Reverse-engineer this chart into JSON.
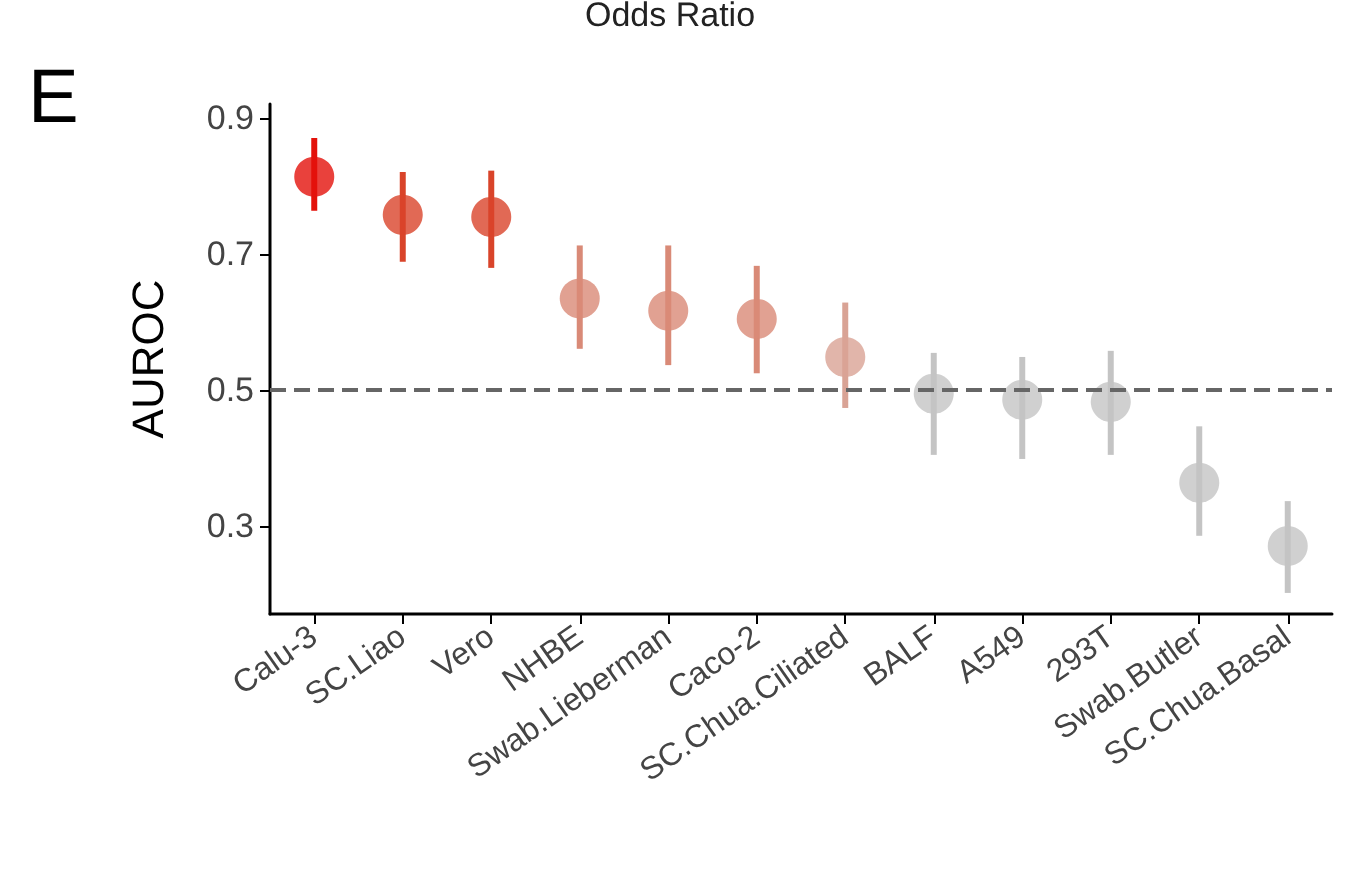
{
  "chart_data": {
    "type": "scatter",
    "title": "Odds Ratio",
    "ylabel": "AUROC",
    "annotations": [
      "E"
    ],
    "categories": [
      "Calu-3",
      "SC.Liao",
      "Vero",
      "NHBE",
      "Swab.Lieberman",
      "Caco-2",
      "SC.Chua.Ciliated",
      "BALF",
      "A549",
      "293T",
      "Swab.Butler",
      "SC.Chua.Basal"
    ],
    "values": [
      0.813,
      0.757,
      0.754,
      0.634,
      0.616,
      0.604,
      0.548,
      0.494,
      0.485,
      0.482,
      0.363,
      0.27
    ],
    "errors": [
      [
        0.763,
        0.87
      ],
      [
        0.688,
        0.82
      ],
      [
        0.679,
        0.822
      ],
      [
        0.56,
        0.712
      ],
      [
        0.536,
        0.712
      ],
      [
        0.524,
        0.682
      ],
      [
        0.473,
        0.628
      ],
      [
        0.404,
        0.554
      ],
      [
        0.398,
        0.548
      ],
      [
        0.404,
        0.557
      ],
      [
        0.285,
        0.446
      ],
      [
        0.201,
        0.336
      ]
    ],
    "colors": [
      "#e3120b",
      "#d9442a",
      "#d9442a",
      "#d98a77",
      "#d98a77",
      "#d98a77",
      "#d9a395",
      "#c4c4c4",
      "#c4c4c4",
      "#c4c4c4",
      "#c4c4c4",
      "#c4c4c4"
    ],
    "ylim": [
      0.17,
      0.92
    ],
    "yticks": [
      0.3,
      0.5,
      0.7,
      0.9
    ],
    "ref_lines": [
      {
        "axis": "y",
        "value": 0.5,
        "color": "#666666",
        "line_style": "dashed"
      }
    ],
    "grid": false,
    "marker": "circle"
  }
}
